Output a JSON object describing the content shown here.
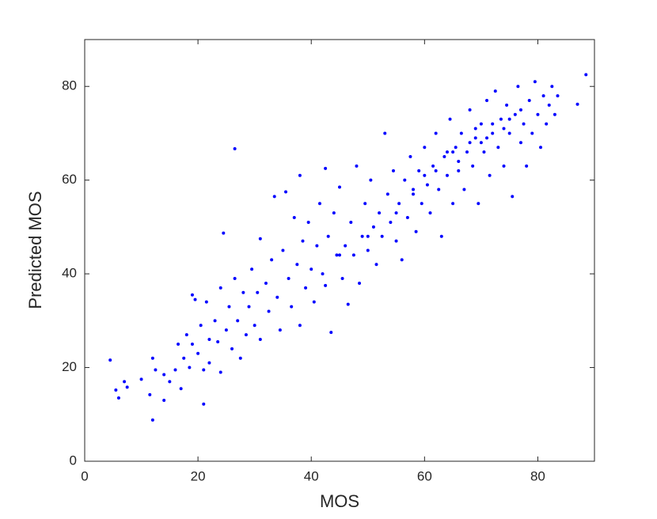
{
  "chart_data": {
    "type": "scatter",
    "x_label": "MOS",
    "y_label": "Predicted MOS",
    "xlim": [
      0,
      90
    ],
    "ylim": [
      0,
      90
    ],
    "xticks": [
      0,
      20,
      40,
      60,
      80
    ],
    "yticks": [
      0,
      20,
      40,
      60,
      80
    ],
    "color": "#0000ff",
    "x": [
      4.5,
      5.5,
      6,
      7,
      7.5,
      10,
      11.5,
      12,
      12,
      12.5,
      14,
      21,
      26.5,
      24.5,
      88.5,
      87,
      38,
      42.5,
      14,
      15,
      16,
      16.5,
      17,
      17.5,
      18,
      18.5,
      19,
      19,
      19.5,
      20,
      20.5,
      21,
      21.5,
      22,
      22,
      23,
      23.5,
      24,
      24,
      25,
      25.5,
      26,
      26.5,
      27,
      27.5,
      28,
      28.5,
      29,
      29.5,
      30,
      30.5,
      31,
      31,
      32,
      32.5,
      33,
      33.5,
      34,
      34.5,
      35,
      35.5,
      36,
      36.5,
      37,
      37.5,
      38,
      38.5,
      39,
      39.5,
      40,
      40.5,
      41,
      41.5,
      42,
      42.5,
      43,
      43.5,
      44,
      44.5,
      45,
      45.5,
      46,
      46.5,
      47,
      47.5,
      48,
      48.5,
      49,
      49.5,
      50,
      50.5,
      51,
      51.5,
      52,
      52.5,
      53,
      53.5,
      54,
      54.5,
      55,
      55.5,
      56,
      56.5,
      57,
      57.5,
      58,
      58.5,
      59,
      59.5,
      60,
      60.5,
      61,
      61.5,
      62,
      62.5,
      63,
      63.5,
      64,
      64.5,
      65,
      65.5,
      66,
      66.5,
      67,
      67.5,
      68,
      68.5,
      69,
      69.5,
      70,
      70.5,
      71,
      71.5,
      72,
      72.5,
      73,
      73.5,
      74,
      74.5,
      75,
      75.5,
      76,
      76.5,
      77,
      77.5,
      78,
      78.5,
      79,
      79.5,
      80,
      80.5,
      81,
      81.5,
      82,
      82.5,
      83,
      83.5,
      65,
      68,
      70,
      72,
      74,
      66,
      62,
      58,
      55,
      50,
      45,
      60,
      64,
      69,
      71,
      75,
      77
    ],
    "y": [
      21.6,
      15.2,
      13.5,
      17,
      15.8,
      17.5,
      14.2,
      8.8,
      22,
      19.5,
      13,
      12.2,
      66.7,
      48.7,
      82.5,
      76.2,
      61,
      62.5,
      18.5,
      17,
      19.5,
      25,
      15.5,
      22,
      27,
      20,
      35.5,
      25,
      34.5,
      23,
      29,
      19.5,
      34,
      26,
      21,
      30,
      25.5,
      37,
      19,
      28,
      33,
      24,
      39,
      30,
      22,
      36,
      27,
      33,
      41,
      29,
      36,
      47.5,
      26,
      38,
      32,
      43,
      56.5,
      35,
      28,
      45,
      57.5,
      39,
      33,
      52,
      42,
      29,
      47,
      37,
      51,
      41,
      34,
      46,
      55,
      40,
      37.5,
      48,
      27.5,
      53,
      44,
      58.5,
      39,
      46,
      33.5,
      51,
      44,
      63,
      38,
      48,
      55,
      45,
      60,
      50,
      42,
      53,
      48,
      70,
      57,
      51,
      62,
      47,
      55,
      43,
      60,
      52,
      65,
      57,
      49,
      62,
      55,
      67,
      59,
      53,
      63,
      70,
      58,
      48,
      65,
      61,
      73,
      55,
      67,
      62,
      70,
      58,
      66,
      75,
      63,
      69,
      55,
      72,
      66,
      77,
      61,
      70,
      79,
      67,
      73,
      63,
      76,
      70,
      56.5,
      74,
      80,
      68,
      72,
      63,
      77,
      70,
      81,
      74,
      67,
      78,
      72,
      76,
      80,
      74,
      78,
      66,
      68,
      68,
      72,
      71,
      64,
      62,
      58,
      53,
      48,
      44,
      61,
      66,
      71,
      69,
      73,
      75
    ]
  }
}
